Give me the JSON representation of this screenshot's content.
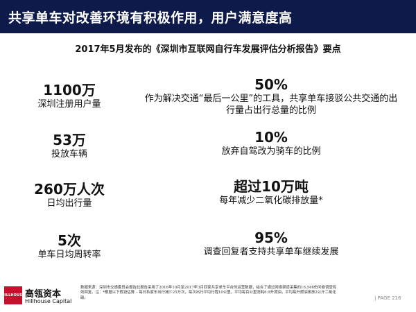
{
  "header": {
    "title": "共享单车对改善环境有积极作用，用户满意度高"
  },
  "subtitle": "2017年5月发布的《深圳市互联网自行车发展评估分析报告》要点",
  "stats": [
    {
      "value": "1100万",
      "label": "深圳注册用户量"
    },
    {
      "value": "53万",
      "label": "投放车辆"
    },
    {
      "value": "260万人次",
      "label": "日均出行量"
    },
    {
      "value": "5次",
      "label": "单车日均周转率"
    }
  ],
  "findings": [
    {
      "value": "50%",
      "desc": "作为解决交通“最后一公里”的工具，共享单车接驳公共交通的出行量占出行总量的比例"
    },
    {
      "value": "10%",
      "desc": "放弃自驾改为骑车的比例"
    },
    {
      "value": "超过10万吨",
      "desc": "每年减少二氧化碳排放量*"
    },
    {
      "value": "95%",
      "desc": "调查回复者支持共享单车继续发展"
    }
  ],
  "footer": {
    "logo_mark": "HILLHOUSE",
    "brand_cn": "高瓴资本",
    "brand_en": "Hillhouse Capital",
    "note": "数据来源：深圳市交通委员会报告此报告采用了2016年10月至2017年3月四家共享单车平台的运营数据，结合了通过网络渠道采集的16,546份问卷调查有效回复。注：*根据以下假设估算 – 每日私家车出行减少25万次，每次出行平均行程10公里，平均每百公里消耗6.9升燃油，平均每升燃油排放2公斤二氧化碳。",
    "page": "| PAGE 216"
  },
  "colors": {
    "title_bar": "#0d1a4a",
    "logo": "#c8102e"
  }
}
